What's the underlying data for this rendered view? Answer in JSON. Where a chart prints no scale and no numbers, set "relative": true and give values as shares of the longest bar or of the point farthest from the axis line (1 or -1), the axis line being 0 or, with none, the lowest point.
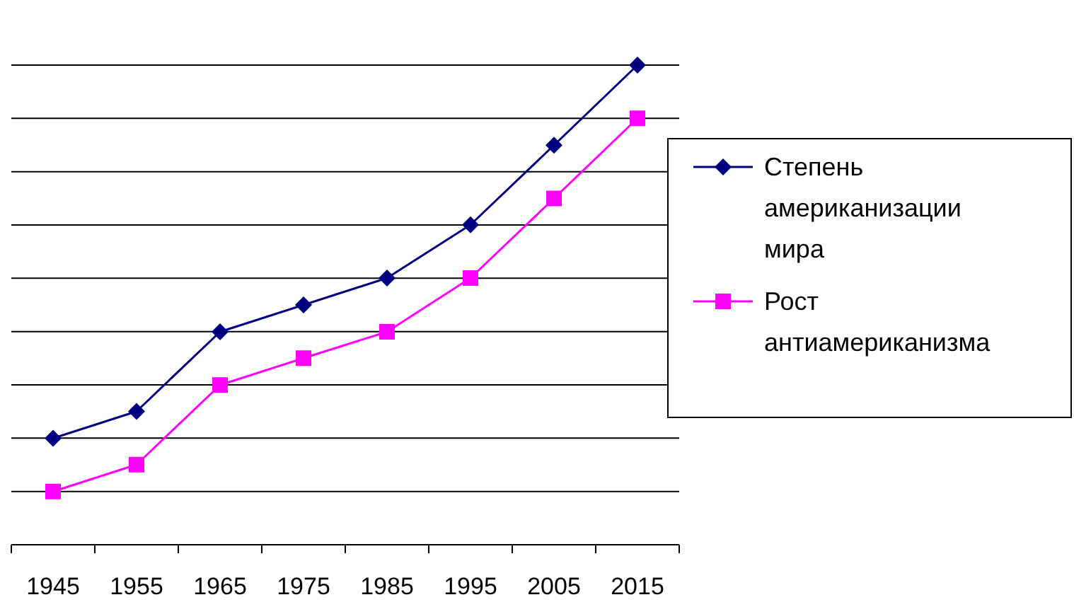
{
  "chart_data": {
    "type": "line",
    "relative": true,
    "categories": [
      "1945",
      "1955",
      "1965",
      "1975",
      "1985",
      "1995",
      "2005",
      "2015"
    ],
    "series": [
      {
        "name": "Степень американизации мира",
        "color": "#000080",
        "marker": "diamond",
        "values": [
          0.222,
          0.278,
          0.444,
          0.5,
          0.556,
          0.667,
          0.833,
          1
        ]
      },
      {
        "name": "Рост антиамериканизма",
        "color": "#ff00ff",
        "marker": "square",
        "values": [
          0.111,
          0.167,
          0.333,
          0.389,
          0.444,
          0.556,
          0.722,
          0.889
        ]
      }
    ],
    "grid": "y",
    "legend": "right",
    "line_style": "solid"
  }
}
